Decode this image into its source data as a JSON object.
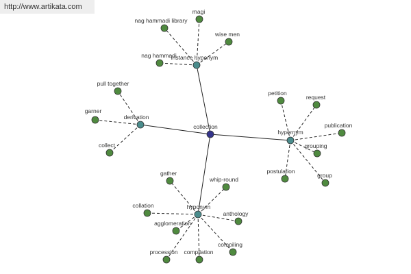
{
  "watermark": "http://www.artikata.com",
  "center": {
    "label": "collection"
  },
  "relations": [
    {
      "label": "instance hyponym",
      "children": [
        "magi",
        "nag hammadi library",
        "wise men",
        "nag hammadi"
      ]
    },
    {
      "label": "derivation",
      "children": [
        "pull together",
        "garner",
        "collect"
      ]
    },
    {
      "label": "hypernym",
      "children": [
        "petition",
        "request",
        "publication",
        "grouping",
        "group",
        "postulation"
      ]
    },
    {
      "label": "hyponym",
      "children": [
        "gather",
        "whip-round",
        "collation",
        "anthology",
        "agglomeration",
        "compiling",
        "compilation",
        "procession"
      ]
    }
  ]
}
